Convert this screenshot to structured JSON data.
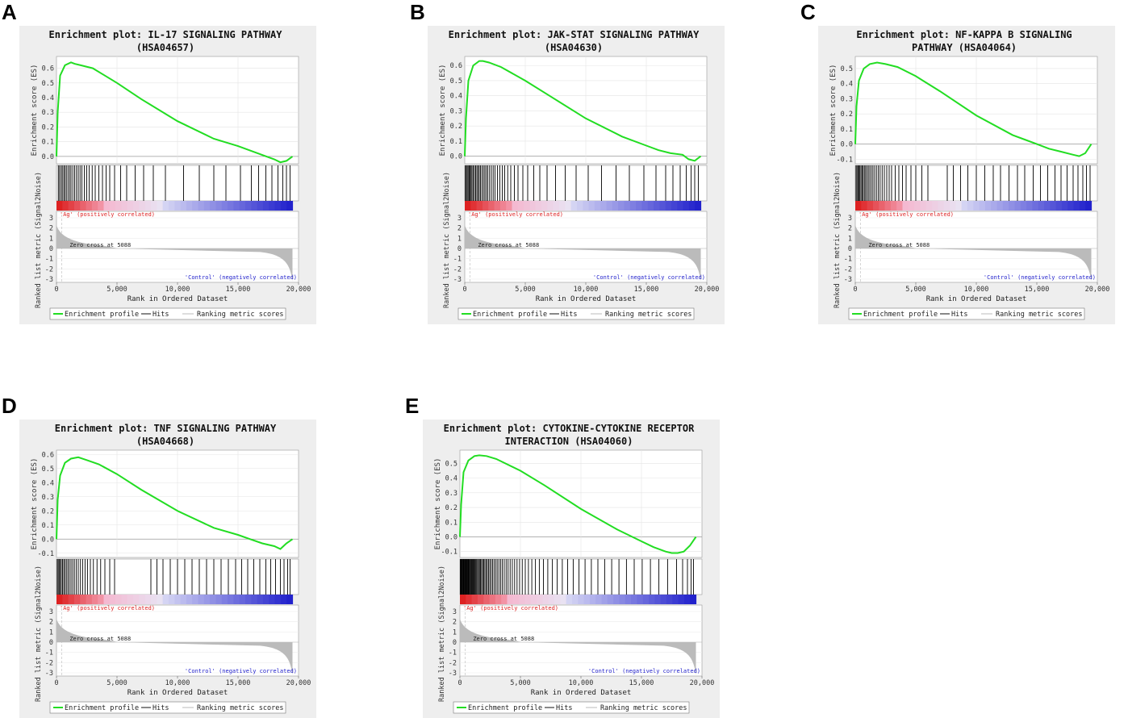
{
  "common": {
    "ylabel_es": "Enrichment score (ES)",
    "ylabel_metric": "Ranked list metric (Signal2Noise)",
    "xlabel": "Rank in Ordered Dataset",
    "pos_label": "'Ag' (positively correlated)",
    "neg_label": "'Control' (negatively correlated)",
    "zero_cross": "Zero cross at 5088",
    "legend": [
      "Enrichment profile",
      "Hits",
      "Ranking metric scores"
    ],
    "x_ticks": [
      "0",
      "5,000",
      "10,000",
      "15,000",
      "20,000"
    ],
    "metric_ticks": [
      "3",
      "2",
      "1",
      "0",
      "-1",
      "-2",
      "-3"
    ],
    "colors": {
      "profile": "#22dd22",
      "pos": "#dd2222",
      "neg": "#2222cc",
      "metric_fill": "#bbbbbb",
      "plot_bg": "#ffffff",
      "panel_bg": "#eeeeee"
    }
  },
  "panels": [
    {
      "letter": "A",
      "title": [
        "Enrichment plot: IL-17 SIGNALING PATHWAY",
        "(HSA04657)"
      ]
    },
    {
      "letter": "B",
      "title": [
        "Enrichment plot: JAK-STAT SIGNALING PATHWAY",
        "(HSA04630)"
      ]
    },
    {
      "letter": "C",
      "title": [
        "Enrichment plot: NF-KAPPA B SIGNALING",
        "PATHWAY (HSA04064)"
      ]
    },
    {
      "letter": "D",
      "title": [
        "Enrichment plot: TNF SIGNALING PATHWAY",
        "(HSA04668)"
      ]
    },
    {
      "letter": "E",
      "title": [
        "Enrichment plot: CYTOKINE-CYTOKINE RECEPTOR",
        "INTERACTION (HSA04060)"
      ]
    }
  ],
  "chart_data": [
    {
      "type": "line",
      "title": "Enrichment plot: IL-17 SIGNALING PATHWAY (HSA04657)",
      "xlabel": "Rank in Ordered Dataset",
      "ylabel": "Enrichment score (ES)",
      "xlim": [
        0,
        20000
      ],
      "ylim": [
        -0.05,
        0.68
      ],
      "es_ticks": [
        "0.0",
        "0.1",
        "0.2",
        "0.3",
        "0.4",
        "0.5",
        "0.6"
      ],
      "es_tick_values": [
        0,
        0.1,
        0.2,
        0.3,
        0.4,
        0.5,
        0.6
      ],
      "x": [
        0,
        100,
        300,
        700,
        1200,
        1500,
        2000,
        3000,
        5000,
        7000,
        10000,
        13000,
        15000,
        16000,
        17000,
        18000,
        18500,
        19000,
        19500
      ],
      "y": [
        0,
        0.3,
        0.55,
        0.62,
        0.64,
        0.63,
        0.62,
        0.6,
        0.5,
        0.39,
        0.24,
        0.12,
        0.07,
        0.04,
        0.01,
        -0.02,
        -0.04,
        -0.03,
        0.0
      ],
      "hits": [
        150,
        250,
        380,
        480,
        600,
        700,
        820,
        950,
        1080,
        1200,
        1350,
        1500,
        1650,
        1800,
        1950,
        2100,
        2300,
        2500,
        2700,
        2950,
        3200,
        3500,
        3800,
        4100,
        4400,
        4800,
        5300,
        5800,
        6500,
        7200,
        8000,
        9000,
        10500,
        11800,
        13000,
        14000,
        15200,
        16100,
        16700,
        17300,
        17800,
        18300,
        18700,
        19000,
        19300
      ],
      "zero_cross": 5088,
      "dataset_n": 19500
    },
    {
      "type": "line",
      "title": "Enrichment plot: JAK-STAT SIGNALING PATHWAY (HSA04630)",
      "xlabel": "Rank in Ordered Dataset",
      "ylabel": "Enrichment score (ES)",
      "xlim": [
        0,
        20000
      ],
      "ylim": [
        -0.05,
        0.66
      ],
      "es_ticks": [
        "0.0",
        "0.1",
        "0.2",
        "0.3",
        "0.4",
        "0.5",
        "0.6"
      ],
      "es_tick_values": [
        0,
        0.1,
        0.2,
        0.3,
        0.4,
        0.5,
        0.6
      ],
      "x": [
        0,
        100,
        300,
        700,
        1200,
        1500,
        2000,
        3000,
        5000,
        7000,
        10000,
        13000,
        15000,
        16000,
        17000,
        18000,
        18500,
        19000,
        19500
      ],
      "y": [
        0,
        0.25,
        0.5,
        0.6,
        0.63,
        0.63,
        0.62,
        0.59,
        0.5,
        0.4,
        0.25,
        0.13,
        0.07,
        0.04,
        0.02,
        0.01,
        -0.02,
        -0.03,
        0.0
      ],
      "hits": [
        50,
        120,
        200,
        280,
        360,
        440,
        520,
        600,
        700,
        800,
        900,
        1000,
        1100,
        1200,
        1300,
        1420,
        1540,
        1660,
        1780,
        1900,
        2050,
        2200,
        2350,
        2500,
        2700,
        2900,
        3100,
        3300,
        3550,
        3800,
        4100,
        4400,
        4800,
        5200,
        5700,
        6200,
        6800,
        7500,
        8300,
        9200,
        10200,
        11300,
        12500,
        13600,
        14800,
        15800,
        16600,
        17200,
        17800,
        18300,
        18700,
        19000,
        19300
      ],
      "zero_cross": 5088,
      "dataset_n": 19500
    },
    {
      "type": "line",
      "title": "Enrichment plot: NF-KAPPA B SIGNALING PATHWAY (HSA04064)",
      "xlabel": "Rank in Ordered Dataset",
      "ylabel": "Enrichment score (ES)",
      "xlim": [
        0,
        20000
      ],
      "ylim": [
        -0.13,
        0.58
      ],
      "es_ticks": [
        "-0.1",
        "0.0",
        "0.1",
        "0.2",
        "0.3",
        "0.4",
        "0.5"
      ],
      "es_tick_values": [
        -0.1,
        0,
        0.1,
        0.2,
        0.3,
        0.4,
        0.5
      ],
      "x": [
        0,
        100,
        300,
        700,
        1200,
        1800,
        2500,
        3500,
        5000,
        7000,
        10000,
        13000,
        15000,
        16000,
        17000,
        18000,
        18500,
        19000,
        19500
      ],
      "y": [
        0,
        0.25,
        0.42,
        0.5,
        0.53,
        0.54,
        0.53,
        0.51,
        0.45,
        0.35,
        0.19,
        0.06,
        0.0,
        -0.03,
        -0.05,
        -0.07,
        -0.08,
        -0.06,
        0.0
      ],
      "hits": [
        60,
        140,
        220,
        300,
        380,
        470,
        560,
        650,
        750,
        850,
        960,
        1080,
        1200,
        1330,
        1460,
        1600,
        1750,
        1900,
        2050,
        2220,
        2400,
        2600,
        2800,
        3000,
        3300,
        3600,
        3900,
        4200,
        4600,
        5000,
        5500,
        6000,
        7600,
        8100,
        8700,
        9300,
        10000,
        10700,
        11400,
        12000,
        12700,
        13400,
        14000,
        14700,
        15300,
        15900,
        16500,
        17000,
        17500,
        18000,
        18400,
        18800,
        19100,
        19400
      ],
      "zero_cross": 5088,
      "dataset_n": 19500
    },
    {
      "type": "line",
      "title": "Enrichment plot: TNF SIGNALING PATHWAY (HSA04668)",
      "xlabel": "Rank in Ordered Dataset",
      "ylabel": "Enrichment score (ES)",
      "xlim": [
        0,
        20000
      ],
      "ylim": [
        -0.13,
        0.63
      ],
      "es_ticks": [
        "-0.1",
        "0.0",
        "0.1",
        "0.2",
        "0.3",
        "0.4",
        "0.5",
        "0.6"
      ],
      "es_tick_values": [
        -0.1,
        0,
        0.1,
        0.2,
        0.3,
        0.4,
        0.5,
        0.6
      ],
      "x": [
        0,
        100,
        300,
        700,
        1200,
        1800,
        2500,
        3500,
        5000,
        7000,
        10000,
        13000,
        15000,
        16000,
        17000,
        18000,
        18500,
        19000,
        19500
      ],
      "y": [
        0,
        0.28,
        0.45,
        0.54,
        0.57,
        0.58,
        0.56,
        0.53,
        0.46,
        0.35,
        0.2,
        0.08,
        0.03,
        0.0,
        -0.03,
        -0.05,
        -0.07,
        -0.03,
        0.0
      ],
      "hits": [
        60,
        140,
        220,
        310,
        400,
        500,
        600,
        700,
        820,
        940,
        1060,
        1200,
        1340,
        1480,
        1640,
        1800,
        1980,
        2160,
        2360,
        2560,
        2800,
        3050,
        3350,
        3650,
        4000,
        4400,
        4800,
        7800,
        8300,
        8800,
        9400,
        10000,
        10600,
        11200,
        11800,
        12400,
        13000,
        13600,
        14200,
        14800,
        15300,
        15800,
        16300,
        16800,
        17300,
        17700,
        18100,
        18500,
        18800,
        19100,
        19300
      ],
      "zero_cross": 5088,
      "dataset_n": 19500
    },
    {
      "type": "line",
      "title": "Enrichment plot: CYTOKINE-CYTOKINE RECEPTOR INTERACTION (HSA04060)",
      "xlabel": "Rank in Ordered Dataset",
      "ylabel": "Enrichment score (ES)",
      "xlim": [
        0,
        20000
      ],
      "ylim": [
        -0.14,
        0.59
      ],
      "es_ticks": [
        "-0.1",
        "0.0",
        "0.1",
        "0.2",
        "0.3",
        "0.4",
        "0.5"
      ],
      "es_tick_values": [
        -0.1,
        0,
        0.1,
        0.2,
        0.3,
        0.4,
        0.5
      ],
      "x": [
        0,
        100,
        300,
        700,
        1200,
        1600,
        2200,
        3000,
        5000,
        7000,
        10000,
        13000,
        15000,
        16000,
        17000,
        17500,
        18000,
        18500,
        19000,
        19500
      ],
      "y": [
        0,
        0.22,
        0.44,
        0.52,
        0.55,
        0.555,
        0.55,
        0.53,
        0.45,
        0.35,
        0.19,
        0.05,
        -0.03,
        -0.07,
        -0.1,
        -0.11,
        -0.11,
        -0.1,
        -0.06,
        0.0
      ],
      "hits": [
        30,
        80,
        130,
        180,
        230,
        280,
        330,
        380,
        430,
        480,
        530,
        580,
        630,
        680,
        730,
        790,
        850,
        910,
        970,
        1030,
        1100,
        1170,
        1240,
        1310,
        1380,
        1460,
        1540,
        1620,
        1700,
        1790,
        1880,
        1970,
        2060,
        2160,
        2260,
        2360,
        2470,
        2580,
        2700,
        2820,
        2950,
        3080,
        3220,
        3360,
        3500,
        3660,
        3820,
        3980,
        4150,
        4330,
        4520,
        4720,
        4930,
        5150,
        5400,
        5660,
        5940,
        6240,
        6560,
        6900,
        7260,
        7640,
        8040,
        8460,
        8900,
        9360,
        9840,
        10340,
        10860,
        11400,
        11960,
        12540,
        13140,
        13760,
        14400,
        15060,
        15740,
        16440,
        17160,
        17900,
        18400,
        18800,
        19100,
        19300
      ],
      "zero_cross": 5088,
      "dataset_n": 19500
    }
  ]
}
